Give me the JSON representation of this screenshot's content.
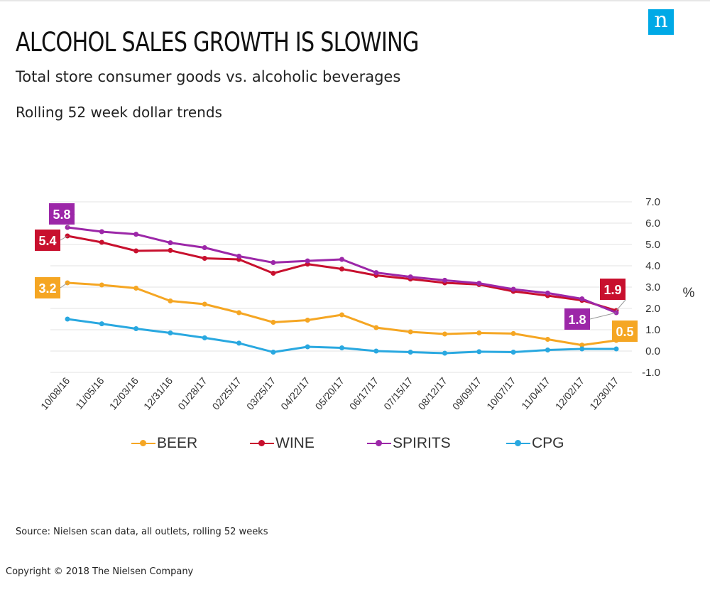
{
  "header": {
    "logo_text": "n",
    "title": "ALCOHOL SALES GROWTH IS SLOWING",
    "subtitle": "Total store consumer goods vs. alcoholic beverages",
    "subtitle2": "Rolling 52 week dollar trends"
  },
  "footer": {
    "source": "Source: Nielsen scan data, all outlets, rolling 52 weeks",
    "copyright": "Copyright © 2018 The Nielsen Company"
  },
  "colors": {
    "beer": "#f5a623",
    "wine": "#c8102e",
    "spirits": "#9c27a8",
    "cpg": "#29a8e0",
    "logo": "#00a9e6"
  },
  "chart_data": {
    "type": "line",
    "ylabel": "%",
    "ylim": [
      -1.0,
      7.0
    ],
    "yticks": [
      "7.0",
      "6.0",
      "5.0",
      "4.0",
      "3.0",
      "2.0",
      "1.0",
      "0.0",
      "-1.0"
    ],
    "grid": true,
    "legend_position": "bottom",
    "x": [
      "10/08/16",
      "11/05/16",
      "12/03/16",
      "12/31/16",
      "01/28/17",
      "02/25/17",
      "03/25/17",
      "04/22/17",
      "05/20/17",
      "06/17/17",
      "07/15/17",
      "08/12/17",
      "09/09/17",
      "10/07/17",
      "11/04/17",
      "12/02/17",
      "12/30/17"
    ],
    "series": [
      {
        "name": "BEER",
        "color": "#f5a623",
        "values": [
          3.2,
          3.1,
          2.95,
          2.35,
          2.2,
          1.8,
          1.35,
          1.45,
          1.7,
          1.1,
          0.9,
          0.8,
          0.85,
          0.82,
          0.55,
          0.28,
          0.5
        ]
      },
      {
        "name": "WINE",
        "color": "#c8102e",
        "values": [
          5.4,
          5.1,
          4.7,
          4.72,
          4.35,
          4.3,
          3.65,
          4.08,
          3.85,
          3.55,
          3.38,
          3.2,
          3.12,
          2.8,
          2.6,
          2.38,
          1.9
        ]
      },
      {
        "name": "SPIRITS",
        "color": "#9c27a8",
        "values": [
          5.8,
          5.6,
          5.48,
          5.08,
          4.85,
          4.45,
          4.15,
          4.23,
          4.3,
          3.68,
          3.48,
          3.32,
          3.18,
          2.9,
          2.72,
          2.45,
          1.8
        ]
      },
      {
        "name": "CPG",
        "color": "#29a8e0",
        "values": [
          1.5,
          1.28,
          1.05,
          0.85,
          0.62,
          0.37,
          -0.05,
          0.2,
          0.15,
          0.0,
          -0.05,
          -0.1,
          -0.03,
          -0.05,
          0.05,
          0.1,
          0.1
        ]
      }
    ],
    "annotations": [
      {
        "series": "SPIRITS",
        "point": "first",
        "text": "5.8"
      },
      {
        "series": "WINE",
        "point": "first",
        "text": "5.4"
      },
      {
        "series": "BEER",
        "point": "first",
        "text": "3.2"
      },
      {
        "series": "WINE",
        "point": "last",
        "text": "1.9"
      },
      {
        "series": "SPIRITS",
        "point": "last",
        "text": "1.8"
      },
      {
        "series": "BEER",
        "point": "last",
        "text": "0.5"
      }
    ]
  }
}
